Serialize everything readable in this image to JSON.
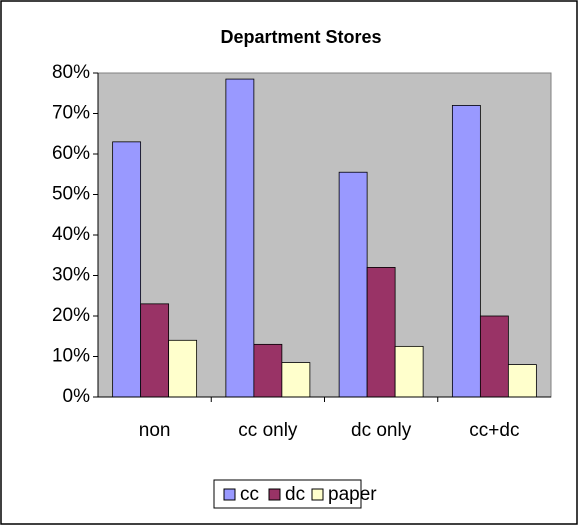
{
  "chart_data": {
    "type": "bar",
    "title": "Department Stores",
    "categories": [
      "non",
      "cc only",
      "dc only",
      "cc+dc"
    ],
    "series": [
      {
        "name": "cc",
        "color": "#9999ff",
        "values": [
          63,
          78.5,
          55.5,
          72
        ]
      },
      {
        "name": "dc",
        "color": "#993366",
        "values": [
          23,
          13,
          32,
          20
        ]
      },
      {
        "name": "paper",
        "color": "#ffffcc",
        "values": [
          14,
          8.5,
          12.5,
          8
        ]
      }
    ],
    "ylim": [
      0,
      80
    ],
    "yticks": [
      {
        "value": 0,
        "label": "0%"
      },
      {
        "value": 10,
        "label": "10%"
      },
      {
        "value": 20,
        "label": "20%"
      },
      {
        "value": 30,
        "label": "30%"
      },
      {
        "value": 40,
        "label": "40%"
      },
      {
        "value": 50,
        "label": "50%"
      },
      {
        "value": 60,
        "label": "60%"
      },
      {
        "value": 70,
        "label": "70%"
      },
      {
        "value": 80,
        "label": "80%"
      }
    ],
    "grid": false,
    "legend": "bottom"
  }
}
